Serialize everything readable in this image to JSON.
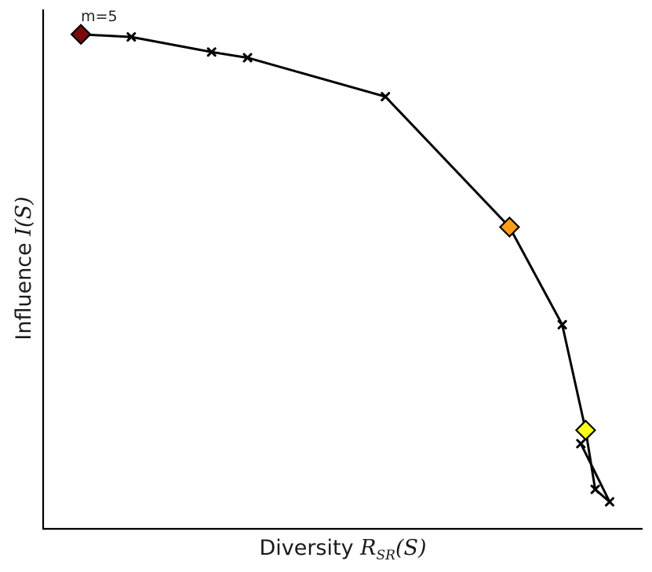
{
  "chart_data": {
    "type": "line",
    "xlabel_prefix": "Diversity ",
    "xlabel_symbol": "R",
    "xlabel_subscript": "SR",
    "xlabel_arg": "(S)",
    "ylabel_prefix": "Influence ",
    "ylabel_symbol": "I",
    "ylabel_arg": "(S)",
    "xlim": [
      0,
      1
    ],
    "ylim": [
      0,
      1
    ],
    "ticks_shown": false,
    "grid": false,
    "legend": "none",
    "series": [
      {
        "marker": "x",
        "color": "#000000",
        "points": [
          {
            "x": 0.063,
            "y": 0.952
          },
          {
            "x": 0.147,
            "y": 0.947
          },
          {
            "x": 0.281,
            "y": 0.918
          },
          {
            "x": 0.341,
            "y": 0.907
          },
          {
            "x": 0.571,
            "y": 0.832
          },
          {
            "x": 0.778,
            "y": 0.581
          },
          {
            "x": 0.866,
            "y": 0.393
          },
          {
            "x": 0.905,
            "y": 0.19
          },
          {
            "x": 0.921,
            "y": 0.076
          },
          {
            "x": 0.945,
            "y": 0.052
          },
          {
            "x": 0.897,
            "y": 0.164
          }
        ]
      }
    ],
    "highlights": [
      {
        "x": 0.063,
        "y": 0.952,
        "marker": "diamond",
        "color": "#7a0b0b"
      },
      {
        "x": 0.778,
        "y": 0.581,
        "marker": "diamond",
        "color": "#ff9e1b"
      },
      {
        "x": 0.905,
        "y": 0.19,
        "marker": "diamond",
        "color": "#ffff1a"
      }
    ],
    "annotations": [
      {
        "text": "m=5",
        "x": 0.063,
        "y": 0.952
      }
    ]
  }
}
